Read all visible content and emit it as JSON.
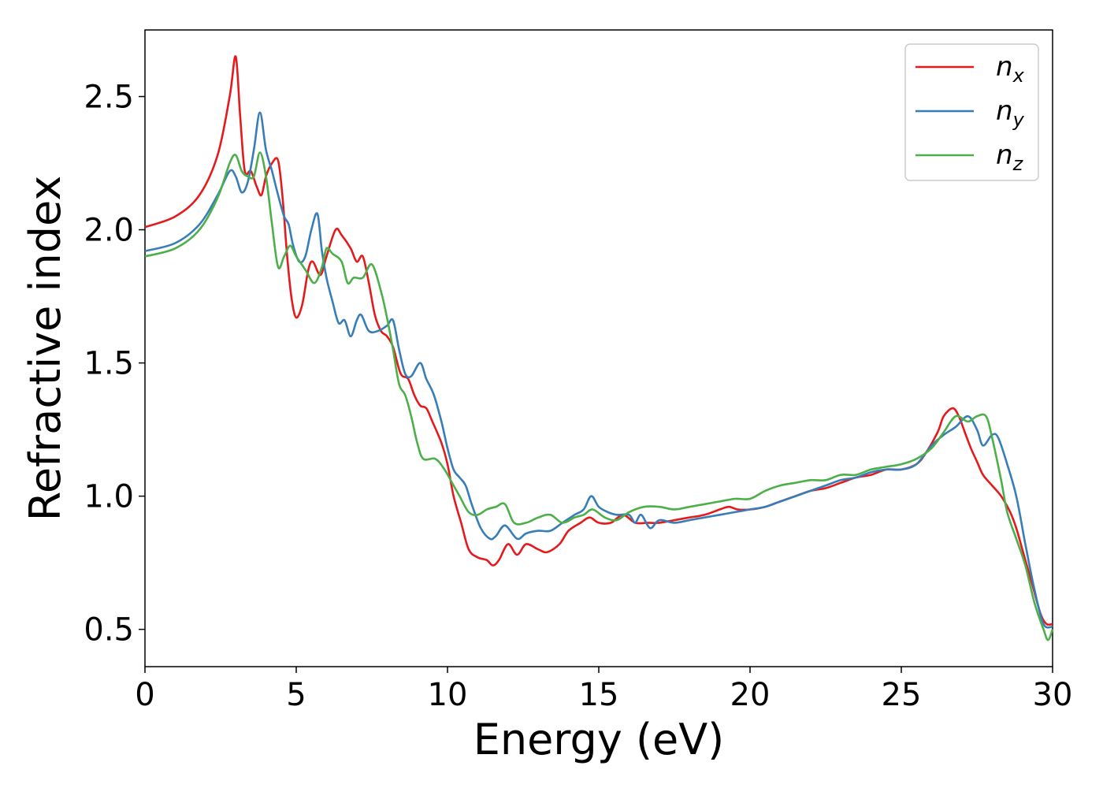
{
  "chart_data": {
    "type": "line",
    "title": "",
    "xlabel": "Energy (eV)",
    "ylabel": "Refractive index",
    "xlim": [
      0,
      30
    ],
    "ylim": [
      0.36,
      2.75
    ],
    "x_ticks": [
      {
        "value": 0,
        "label": "0"
      },
      {
        "value": 5,
        "label": "5"
      },
      {
        "value": 10,
        "label": "10"
      },
      {
        "value": 15,
        "label": "15"
      },
      {
        "value": 20,
        "label": "20"
      },
      {
        "value": 25,
        "label": "25"
      },
      {
        "value": 30,
        "label": "30"
      }
    ],
    "y_ticks": [
      {
        "value": 0.5,
        "label": "0.5"
      },
      {
        "value": 1.0,
        "label": "1.0"
      },
      {
        "value": 1.5,
        "label": "1.5"
      },
      {
        "value": 2.0,
        "label": "2.0"
      },
      {
        "value": 2.5,
        "label": "2.5"
      }
    ],
    "grid": false,
    "legend_position": "top-right",
    "series": [
      {
        "name": "n",
        "sub": "x",
        "color": "#e41a1c",
        "points": [
          [
            0,
            2.01
          ],
          [
            1,
            2.05
          ],
          [
            1.8,
            2.13
          ],
          [
            2.4,
            2.28
          ],
          [
            2.8,
            2.5
          ],
          [
            3.0,
            2.65
          ],
          [
            3.15,
            2.42
          ],
          [
            3.3,
            2.22
          ],
          [
            3.5,
            2.22
          ],
          [
            3.7,
            2.16
          ],
          [
            3.85,
            2.13
          ],
          [
            4.0,
            2.2
          ],
          [
            4.2,
            2.25
          ],
          [
            4.4,
            2.26
          ],
          [
            4.55,
            2.12
          ],
          [
            4.7,
            1.9
          ],
          [
            4.85,
            1.74
          ],
          [
            5.0,
            1.67
          ],
          [
            5.2,
            1.72
          ],
          [
            5.4,
            1.85
          ],
          [
            5.55,
            1.88
          ],
          [
            5.8,
            1.83
          ],
          [
            6.0,
            1.9
          ],
          [
            6.3,
            2.0
          ],
          [
            6.5,
            1.98
          ],
          [
            6.8,
            1.93
          ],
          [
            7.0,
            1.88
          ],
          [
            7.2,
            1.9
          ],
          [
            7.4,
            1.8
          ],
          [
            7.6,
            1.68
          ],
          [
            7.8,
            1.62
          ],
          [
            8.0,
            1.6
          ],
          [
            8.2,
            1.56
          ],
          [
            8.45,
            1.46
          ],
          [
            8.7,
            1.44
          ],
          [
            8.9,
            1.38
          ],
          [
            9.1,
            1.34
          ],
          [
            9.3,
            1.33
          ],
          [
            9.5,
            1.28
          ],
          [
            9.8,
            1.2
          ],
          [
            10.0,
            1.12
          ],
          [
            10.2,
            1.0
          ],
          [
            10.45,
            0.9
          ],
          [
            10.7,
            0.8
          ],
          [
            11.0,
            0.77
          ],
          [
            11.3,
            0.76
          ],
          [
            11.5,
            0.74
          ],
          [
            11.7,
            0.76
          ],
          [
            12.0,
            0.82
          ],
          [
            12.3,
            0.78
          ],
          [
            12.6,
            0.82
          ],
          [
            13.0,
            0.8
          ],
          [
            13.3,
            0.79
          ],
          [
            13.7,
            0.82
          ],
          [
            14.0,
            0.87
          ],
          [
            14.4,
            0.9
          ],
          [
            14.7,
            0.92
          ],
          [
            15.0,
            0.9
          ],
          [
            15.4,
            0.9
          ],
          [
            15.8,
            0.93
          ],
          [
            16.2,
            0.9
          ],
          [
            16.6,
            0.9
          ],
          [
            17.0,
            0.9
          ],
          [
            17.5,
            0.91
          ],
          [
            18.0,
            0.92
          ],
          [
            18.5,
            0.93
          ],
          [
            19.0,
            0.95
          ],
          [
            19.3,
            0.96
          ],
          [
            19.6,
            0.95
          ],
          [
            20.0,
            0.95
          ],
          [
            20.5,
            0.96
          ],
          [
            21.0,
            0.98
          ],
          [
            21.5,
            1.0
          ],
          [
            22.0,
            1.02
          ],
          [
            22.5,
            1.03
          ],
          [
            23.0,
            1.05
          ],
          [
            23.5,
            1.07
          ],
          [
            24.0,
            1.08
          ],
          [
            24.5,
            1.1
          ],
          [
            25.0,
            1.1
          ],
          [
            25.5,
            1.12
          ],
          [
            25.8,
            1.16
          ],
          [
            26.2,
            1.24
          ],
          [
            26.4,
            1.3
          ],
          [
            26.7,
            1.33
          ],
          [
            26.9,
            1.3
          ],
          [
            27.1,
            1.24
          ],
          [
            27.3,
            1.18
          ],
          [
            27.5,
            1.13
          ],
          [
            27.7,
            1.08
          ],
          [
            28.0,
            1.04
          ],
          [
            28.3,
            1.0
          ],
          [
            28.6,
            0.94
          ],
          [
            28.8,
            0.88
          ],
          [
            29.0,
            0.8
          ],
          [
            29.3,
            0.68
          ],
          [
            29.6,
            0.56
          ],
          [
            29.8,
            0.52
          ],
          [
            30.0,
            0.52
          ]
        ]
      },
      {
        "name": "n",
        "sub": "y",
        "color": "#377eb8",
        "points": [
          [
            0,
            1.92
          ],
          [
            1,
            1.95
          ],
          [
            1.8,
            2.02
          ],
          [
            2.4,
            2.13
          ],
          [
            2.8,
            2.22
          ],
          [
            3.0,
            2.2
          ],
          [
            3.2,
            2.14
          ],
          [
            3.4,
            2.18
          ],
          [
            3.6,
            2.3
          ],
          [
            3.8,
            2.44
          ],
          [
            4.0,
            2.3
          ],
          [
            4.2,
            2.22
          ],
          [
            4.4,
            2.13
          ],
          [
            4.6,
            2.05
          ],
          [
            4.75,
            2.02
          ],
          [
            4.9,
            1.94
          ],
          [
            5.1,
            1.88
          ],
          [
            5.3,
            1.9
          ],
          [
            5.5,
            2.0
          ],
          [
            5.7,
            2.06
          ],
          [
            5.85,
            1.92
          ],
          [
            6.0,
            1.82
          ],
          [
            6.2,
            1.73
          ],
          [
            6.4,
            1.65
          ],
          [
            6.6,
            1.66
          ],
          [
            6.8,
            1.6
          ],
          [
            7.0,
            1.66
          ],
          [
            7.15,
            1.68
          ],
          [
            7.4,
            1.62
          ],
          [
            7.7,
            1.62
          ],
          [
            8.0,
            1.64
          ],
          [
            8.2,
            1.66
          ],
          [
            8.4,
            1.55
          ],
          [
            8.6,
            1.46
          ],
          [
            8.8,
            1.45
          ],
          [
            9.1,
            1.5
          ],
          [
            9.3,
            1.44
          ],
          [
            9.55,
            1.38
          ],
          [
            9.8,
            1.28
          ],
          [
            10.0,
            1.18
          ],
          [
            10.2,
            1.1
          ],
          [
            10.4,
            1.07
          ],
          [
            10.6,
            1.04
          ],
          [
            10.8,
            0.97
          ],
          [
            11.1,
            0.88
          ],
          [
            11.4,
            0.84
          ],
          [
            11.6,
            0.85
          ],
          [
            11.9,
            0.89
          ],
          [
            12.3,
            0.84
          ],
          [
            12.6,
            0.86
          ],
          [
            13.0,
            0.87
          ],
          [
            13.4,
            0.87
          ],
          [
            13.8,
            0.9
          ],
          [
            14.2,
            0.93
          ],
          [
            14.5,
            0.95
          ],
          [
            14.75,
            1.0
          ],
          [
            15.0,
            0.96
          ],
          [
            15.3,
            0.94
          ],
          [
            15.6,
            0.93
          ],
          [
            16.0,
            0.93
          ],
          [
            16.2,
            0.9
          ],
          [
            16.4,
            0.93
          ],
          [
            16.7,
            0.88
          ],
          [
            17.0,
            0.91
          ],
          [
            17.5,
            0.9
          ],
          [
            18.0,
            0.91
          ],
          [
            18.5,
            0.92
          ],
          [
            19.0,
            0.93
          ],
          [
            19.5,
            0.94
          ],
          [
            20.0,
            0.95
          ],
          [
            20.5,
            0.96
          ],
          [
            21.0,
            0.98
          ],
          [
            21.5,
            1.0
          ],
          [
            22.0,
            1.02
          ],
          [
            22.5,
            1.04
          ],
          [
            23.0,
            1.06
          ],
          [
            23.5,
            1.07
          ],
          [
            24.0,
            1.09
          ],
          [
            24.5,
            1.1
          ],
          [
            25.0,
            1.1
          ],
          [
            25.5,
            1.12
          ],
          [
            26.0,
            1.19
          ],
          [
            26.4,
            1.23
          ],
          [
            26.8,
            1.26
          ],
          [
            27.2,
            1.3
          ],
          [
            27.5,
            1.25
          ],
          [
            27.7,
            1.19
          ],
          [
            28.0,
            1.23
          ],
          [
            28.2,
            1.22
          ],
          [
            28.5,
            1.12
          ],
          [
            28.8,
            1.0
          ],
          [
            29.1,
            0.82
          ],
          [
            29.4,
            0.65
          ],
          [
            29.7,
            0.52
          ],
          [
            30.0,
            0.51
          ]
        ]
      },
      {
        "name": "n",
        "sub": "z",
        "color": "#4daf4a",
        "points": [
          [
            0,
            1.9
          ],
          [
            1,
            1.93
          ],
          [
            1.8,
            2.0
          ],
          [
            2.4,
            2.12
          ],
          [
            2.8,
            2.25
          ],
          [
            3.0,
            2.28
          ],
          [
            3.2,
            2.22
          ],
          [
            3.4,
            2.2
          ],
          [
            3.6,
            2.2
          ],
          [
            3.8,
            2.29
          ],
          [
            4.0,
            2.2
          ],
          [
            4.2,
            2.02
          ],
          [
            4.4,
            1.86
          ],
          [
            4.6,
            1.9
          ],
          [
            4.8,
            1.94
          ],
          [
            5.0,
            1.9
          ],
          [
            5.3,
            1.85
          ],
          [
            5.6,
            1.8
          ],
          [
            5.85,
            1.86
          ],
          [
            6.0,
            1.93
          ],
          [
            6.2,
            1.91
          ],
          [
            6.5,
            1.88
          ],
          [
            6.7,
            1.8
          ],
          [
            6.9,
            1.82
          ],
          [
            7.2,
            1.82
          ],
          [
            7.5,
            1.87
          ],
          [
            7.8,
            1.77
          ],
          [
            8.0,
            1.67
          ],
          [
            8.2,
            1.55
          ],
          [
            8.4,
            1.42
          ],
          [
            8.6,
            1.38
          ],
          [
            8.8,
            1.3
          ],
          [
            9.0,
            1.2
          ],
          [
            9.2,
            1.14
          ],
          [
            9.6,
            1.14
          ],
          [
            9.9,
            1.1
          ],
          [
            10.2,
            1.04
          ],
          [
            10.4,
            1.0
          ],
          [
            10.7,
            0.94
          ],
          [
            11.0,
            0.93
          ],
          [
            11.3,
            0.95
          ],
          [
            11.6,
            0.96
          ],
          [
            11.9,
            0.97
          ],
          [
            12.2,
            0.9
          ],
          [
            12.6,
            0.9
          ],
          [
            13.0,
            0.92
          ],
          [
            13.4,
            0.93
          ],
          [
            13.8,
            0.9
          ],
          [
            14.2,
            0.92
          ],
          [
            14.5,
            0.93
          ],
          [
            14.8,
            0.95
          ],
          [
            15.2,
            0.92
          ],
          [
            15.6,
            0.91
          ],
          [
            16.0,
            0.94
          ],
          [
            16.5,
            0.96
          ],
          [
            17.0,
            0.96
          ],
          [
            17.5,
            0.95
          ],
          [
            18.0,
            0.96
          ],
          [
            18.5,
            0.97
          ],
          [
            19.0,
            0.98
          ],
          [
            19.5,
            0.99
          ],
          [
            20.0,
            0.99
          ],
          [
            20.5,
            1.02
          ],
          [
            21.0,
            1.04
          ],
          [
            21.5,
            1.05
          ],
          [
            22.0,
            1.06
          ],
          [
            22.5,
            1.06
          ],
          [
            23.0,
            1.08
          ],
          [
            23.5,
            1.08
          ],
          [
            24.0,
            1.1
          ],
          [
            24.5,
            1.11
          ],
          [
            25.0,
            1.12
          ],
          [
            25.5,
            1.14
          ],
          [
            26.0,
            1.18
          ],
          [
            26.4,
            1.24
          ],
          [
            26.8,
            1.3
          ],
          [
            27.2,
            1.28
          ],
          [
            27.5,
            1.3
          ],
          [
            27.8,
            1.3
          ],
          [
            28.0,
            1.22
          ],
          [
            28.3,
            1.06
          ],
          [
            28.5,
            0.94
          ],
          [
            28.8,
            0.84
          ],
          [
            29.1,
            0.74
          ],
          [
            29.4,
            0.6
          ],
          [
            29.7,
            0.5
          ],
          [
            29.85,
            0.46
          ],
          [
            30.0,
            0.5
          ]
        ]
      }
    ]
  }
}
